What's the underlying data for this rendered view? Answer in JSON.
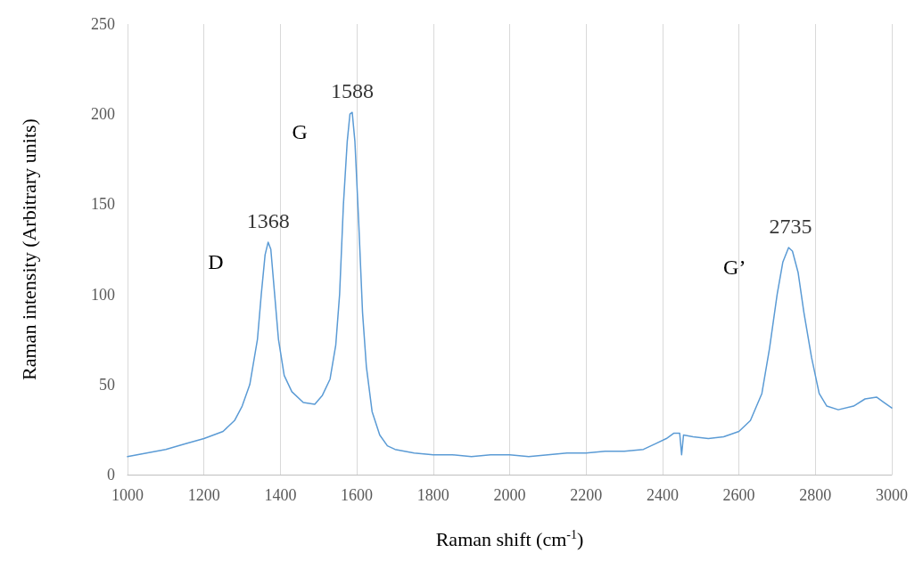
{
  "chart_data": {
    "type": "line",
    "xlabel": "Raman shift (cm$^{-1}$)",
    "ylabel": "Raman intensity (Arbitrary units)",
    "x": [
      1000,
      1050,
      1100,
      1150,
      1200,
      1250,
      1280,
      1300,
      1320,
      1340,
      1350,
      1360,
      1368,
      1375,
      1385,
      1395,
      1410,
      1430,
      1460,
      1490,
      1510,
      1530,
      1545,
      1555,
      1565,
      1575,
      1582,
      1588,
      1595,
      1605,
      1615,
      1625,
      1640,
      1660,
      1680,
      1700,
      1750,
      1800,
      1850,
      1900,
      1950,
      2000,
      2050,
      2100,
      2150,
      2200,
      2250,
      2300,
      2350,
      2380,
      2410,
      2430,
      2445,
      2450,
      2455,
      2480,
      2520,
      2560,
      2600,
      2630,
      2660,
      2680,
      2700,
      2715,
      2730,
      2740,
      2755,
      2770,
      2790,
      2810,
      2830,
      2860,
      2900,
      2930,
      2960,
      2980,
      3000
    ],
    "series": [
      {
        "color": "#5b9bd5",
        "values": [
          10,
          12,
          14,
          17,
          20,
          24,
          30,
          38,
          50,
          75,
          100,
          122,
          129,
          125,
          100,
          75,
          55,
          46,
          40,
          39,
          44,
          53,
          72,
          100,
          150,
          185,
          200,
          201,
          185,
          140,
          90,
          60,
          35,
          22,
          16,
          14,
          12,
          11,
          11,
          10,
          11,
          11,
          10,
          11,
          12,
          12,
          13,
          13,
          14,
          17,
          20,
          23,
          23,
          11,
          22,
          21,
          20,
          21,
          24,
          30,
          45,
          70,
          100,
          118,
          126,
          124,
          112,
          90,
          65,
          45,
          38,
          36,
          38,
          42,
          43,
          40,
          37
        ]
      }
    ],
    "xlim": [
      1000,
      3000
    ],
    "xticks": [
      1000,
      1200,
      1400,
      1600,
      1800,
      2000,
      2200,
      2400,
      2600,
      2800,
      3000
    ],
    "ylim": [
      0,
      250
    ],
    "yticks": [
      0,
      50,
      100,
      150,
      200,
      250
    ],
    "grid": "x",
    "marker": "none",
    "line_style": "solid",
    "annotations": [
      {
        "text": "1368",
        "x": 1368,
        "y": 129
      },
      "D",
      {
        "text": "1588",
        "x": 1588,
        "y": 201
      },
      "G",
      {
        "text": "2735",
        "x": 2735,
        "y": 126
      },
      "G’"
    ]
  }
}
